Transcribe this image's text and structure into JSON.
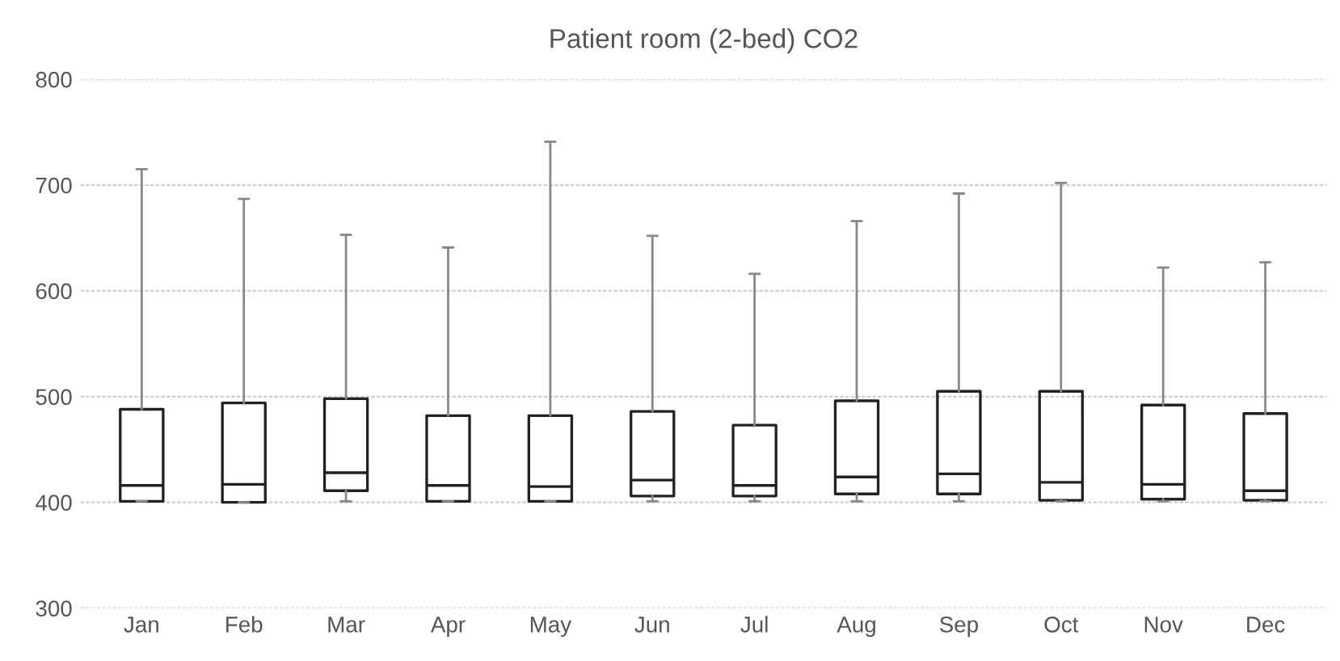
{
  "chart_data": {
    "type": "box",
    "title": "Patient room (2-bed) CO2",
    "categories": [
      "Jan",
      "Feb",
      "Mar",
      "Apr",
      "May",
      "Jun",
      "Jul",
      "Aug",
      "Sep",
      "Oct",
      "Nov",
      "Dec"
    ],
    "boxes": [
      {
        "low": 401,
        "q1": 401,
        "median": 416,
        "q3": 488,
        "high": 715
      },
      {
        "low": 400,
        "q1": 400,
        "median": 417,
        "q3": 494,
        "high": 687
      },
      {
        "low": 401,
        "q1": 411,
        "median": 428,
        "q3": 498,
        "high": 653
      },
      {
        "low": 401,
        "q1": 401,
        "median": 416,
        "q3": 482,
        "high": 641
      },
      {
        "low": 401,
        "q1": 401,
        "median": 415,
        "q3": 482,
        "high": 741
      },
      {
        "low": 401,
        "q1": 406,
        "median": 421,
        "q3": 486,
        "high": 652
      },
      {
        "low": 401,
        "q1": 406,
        "median": 416,
        "q3": 473,
        "high": 616
      },
      {
        "low": 401,
        "q1": 408,
        "median": 424,
        "q3": 496,
        "high": 666
      },
      {
        "low": 401,
        "q1": 408,
        "median": 427,
        "q3": 505,
        "high": 692
      },
      {
        "low": 401,
        "q1": 402,
        "median": 419,
        "q3": 505,
        "high": 702
      },
      {
        "low": 401,
        "q1": 403,
        "median": 417,
        "q3": 492,
        "high": 622
      },
      {
        "low": 401,
        "q1": 402,
        "median": 411,
        "q3": 484,
        "high": 627
      }
    ],
    "ylim": [
      300,
      800
    ],
    "yticks": [
      300,
      400,
      500,
      600,
      700,
      800
    ],
    "grid": "y"
  }
}
